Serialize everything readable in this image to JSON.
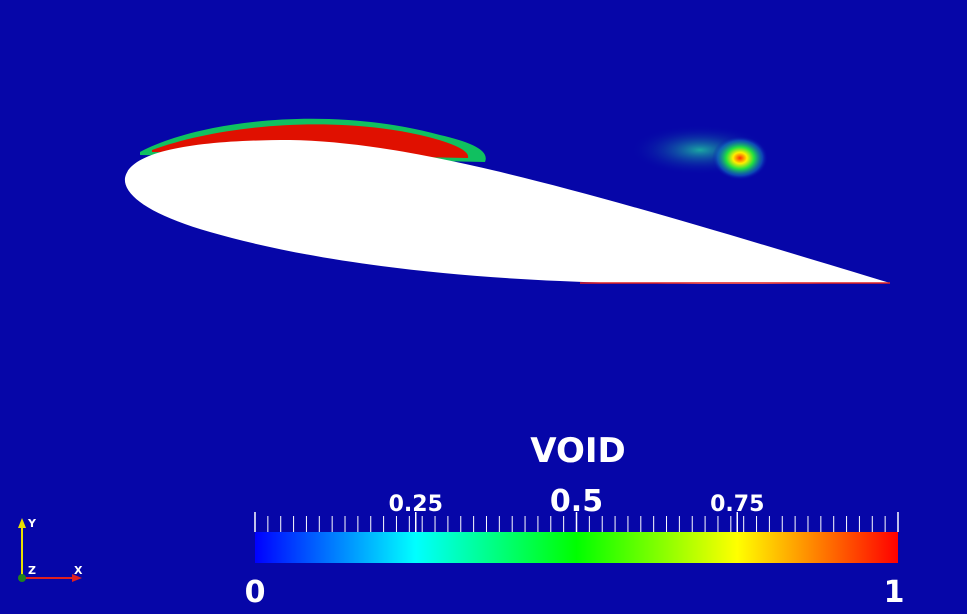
{
  "colorbar": {
    "title": "VOID",
    "range": [
      0,
      1
    ],
    "ticks": [
      0,
      0.25,
      0.5,
      0.75,
      1
    ]
  },
  "axes": {
    "x": "X",
    "y": "Y",
    "z": "Z"
  }
}
